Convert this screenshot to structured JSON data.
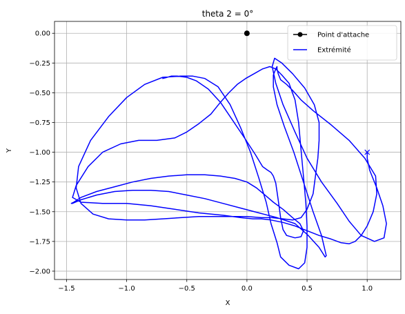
{
  "chart_data": {
    "type": "line",
    "title": "theta 2 = 0°",
    "xlabel": "X",
    "ylabel": "Y",
    "xlim": [
      -1.6,
      1.28
    ],
    "ylim": [
      -2.07,
      0.1
    ],
    "xticks": [
      -1.5,
      -1.0,
      -0.5,
      0.0,
      0.5,
      1.0
    ],
    "xtick_labels": [
      "−1.5",
      "−1.0",
      "−0.5",
      "0.0",
      "0.5",
      "1.0"
    ],
    "yticks": [
      0.0,
      -0.25,
      -0.5,
      -0.75,
      -1.0,
      -1.25,
      -1.5,
      -1.75,
      -2.0
    ],
    "ytick_labels": [
      "0.00",
      "−0.25",
      "−0.50",
      "−0.75",
      "−1.00",
      "−1.25",
      "−1.50",
      "−1.75",
      "−2.00"
    ],
    "grid": true,
    "legend": {
      "position": "top-right"
    },
    "series": [
      {
        "name": "Point d'attache",
        "kind": "point",
        "color": "#000000",
        "marker": "circle",
        "x": [
          0.0
        ],
        "y": [
          0.0
        ]
      },
      {
        "name": "Extrémité",
        "kind": "line",
        "color": "#0000ff",
        "marker_end": "x",
        "x": [
          1.0,
          1.0,
          1.02,
          1.08,
          1.13,
          1.16,
          1.14,
          1.06,
          0.95,
          0.85,
          0.75,
          0.62,
          0.5,
          0.4,
          0.3,
          0.24,
          0.21,
          0.23,
          0.29,
          0.38,
          0.48,
          0.56,
          0.6,
          0.6,
          0.59,
          0.57,
          0.55,
          0.5,
          0.45,
          0.38,
          0.3,
          0.21,
          0.12,
          0.0,
          -0.12,
          -0.25,
          -0.4,
          -0.55,
          -0.7,
          -0.85,
          -1.0,
          -1.15,
          -1.28,
          -1.38,
          -1.42,
          -1.4,
          -1.3,
          -1.15,
          -1.0,
          -0.85,
          -0.7,
          -0.55,
          -0.45,
          -0.35,
          -0.24,
          -0.14,
          -0.05,
          0.03,
          0.1,
          0.16,
          0.2,
          0.25,
          0.28,
          0.35,
          0.43,
          0.48,
          0.5,
          0.5,
          0.49,
          0.47,
          0.45,
          0.43,
          0.4,
          0.35,
          0.29,
          0.24,
          0.19,
          0.13,
          0.06,
          -0.01,
          -0.08,
          -0.15,
          -0.22,
          -0.3,
          -0.4,
          -0.5,
          -0.6,
          -0.75,
          -0.9,
          -1.05,
          -1.2,
          -1.32,
          -1.42,
          -1.45,
          -1.38,
          -1.2,
          -1.0,
          -0.8,
          -0.6,
          -0.4,
          -0.2,
          -0.05,
          0.05,
          0.12,
          0.2,
          0.3,
          0.4,
          0.5,
          0.6,
          0.7,
          0.78,
          0.85,
          0.9,
          0.95,
          1.0,
          1.05,
          1.08,
          1.07,
          0.98,
          0.85,
          0.7,
          0.55,
          0.45,
          0.38,
          0.33,
          0.28,
          0.26,
          0.25,
          0.25,
          0.24,
          0.22,
          0.22,
          0.25,
          0.31,
          0.39,
          0.47,
          0.55,
          0.62,
          0.66,
          0.65,
          0.6,
          0.51,
          0.4,
          0.25,
          0.1,
          -0.05,
          -0.2,
          -0.35,
          -0.5,
          -0.65,
          -0.8,
          -0.95,
          -1.1,
          -1.25,
          -1.38,
          -1.45,
          -1.46,
          -1.44,
          -1.38,
          -1.25,
          -1.1,
          -0.95,
          -0.8,
          -0.65,
          -0.5,
          -0.35,
          -0.22,
          -0.1,
          0.0,
          0.08,
          0.15,
          0.22,
          0.3,
          0.38,
          0.44,
          0.47,
          0.45,
          0.4,
          0.33,
          0.3,
          0.28,
          0.26,
          0.24,
          0.22,
          0.2,
          0.17,
          0.13,
          0.07,
          -0.02,
          -0.12,
          -0.22,
          -0.32,
          -0.42,
          -0.5,
          -0.58,
          -0.63,
          -0.66,
          -0.7
        ],
        "y": [
          -1.0,
          -1.05,
          -1.15,
          -1.3,
          -1.45,
          -1.6,
          -1.72,
          -1.75,
          -1.7,
          -1.58,
          -1.43,
          -1.25,
          -1.05,
          -0.83,
          -0.6,
          -0.42,
          -0.28,
          -0.21,
          -0.25,
          -0.34,
          -0.46,
          -0.6,
          -0.75,
          -0.9,
          -1.05,
          -1.2,
          -1.35,
          -1.48,
          -1.55,
          -1.57,
          -1.56,
          -1.55,
          -1.55,
          -1.54,
          -1.54,
          -1.54,
          -1.54,
          -1.55,
          -1.56,
          -1.57,
          -1.57,
          -1.56,
          -1.52,
          -1.43,
          -1.3,
          -1.12,
          -0.9,
          -0.7,
          -0.54,
          -0.43,
          -0.37,
          -0.36,
          -0.36,
          -0.38,
          -0.45,
          -0.6,
          -0.8,
          -1.0,
          -1.22,
          -1.42,
          -1.6,
          -1.76,
          -1.88,
          -1.95,
          -1.98,
          -1.93,
          -1.8,
          -1.62,
          -1.43,
          -1.2,
          -0.98,
          -0.75,
          -0.56,
          -0.42,
          -0.35,
          -0.3,
          -0.28,
          -0.3,
          -0.34,
          -0.38,
          -0.43,
          -0.5,
          -0.58,
          -0.68,
          -0.76,
          -0.83,
          -0.88,
          -0.9,
          -0.9,
          -0.93,
          -1.0,
          -1.12,
          -1.28,
          -1.38,
          -1.42,
          -1.43,
          -1.43,
          -1.45,
          -1.48,
          -1.51,
          -1.53,
          -1.55,
          -1.56,
          -1.56,
          -1.57,
          -1.59,
          -1.62,
          -1.66,
          -1.7,
          -1.73,
          -1.76,
          -1.77,
          -1.75,
          -1.7,
          -1.62,
          -1.5,
          -1.35,
          -1.2,
          -1.05,
          -0.9,
          -0.77,
          -0.65,
          -0.56,
          -0.48,
          -0.43,
          -0.39,
          -0.34,
          -0.3,
          -0.28,
          -0.3,
          -0.35,
          -0.45,
          -0.6,
          -0.78,
          -1.0,
          -1.25,
          -1.5,
          -1.7,
          -1.87,
          -1.88,
          -1.8,
          -1.7,
          -1.6,
          -1.55,
          -1.51,
          -1.47,
          -1.43,
          -1.39,
          -1.36,
          -1.33,
          -1.32,
          -1.32,
          -1.33,
          -1.36,
          -1.4,
          -1.43,
          -1.43,
          -1.42,
          -1.38,
          -1.33,
          -1.29,
          -1.25,
          -1.22,
          -1.2,
          -1.19,
          -1.19,
          -1.2,
          -1.22,
          -1.25,
          -1.3,
          -1.36,
          -1.42,
          -1.48,
          -1.55,
          -1.6,
          -1.66,
          -1.71,
          -1.72,
          -1.7,
          -1.65,
          -1.55,
          -1.4,
          -1.26,
          -1.2,
          -1.17,
          -1.15,
          -1.12,
          -1.02,
          -0.88,
          -0.73,
          -0.58,
          -0.47,
          -0.4,
          -0.37,
          -0.36,
          -0.36,
          -0.37,
          -0.38
        ]
      }
    ]
  }
}
